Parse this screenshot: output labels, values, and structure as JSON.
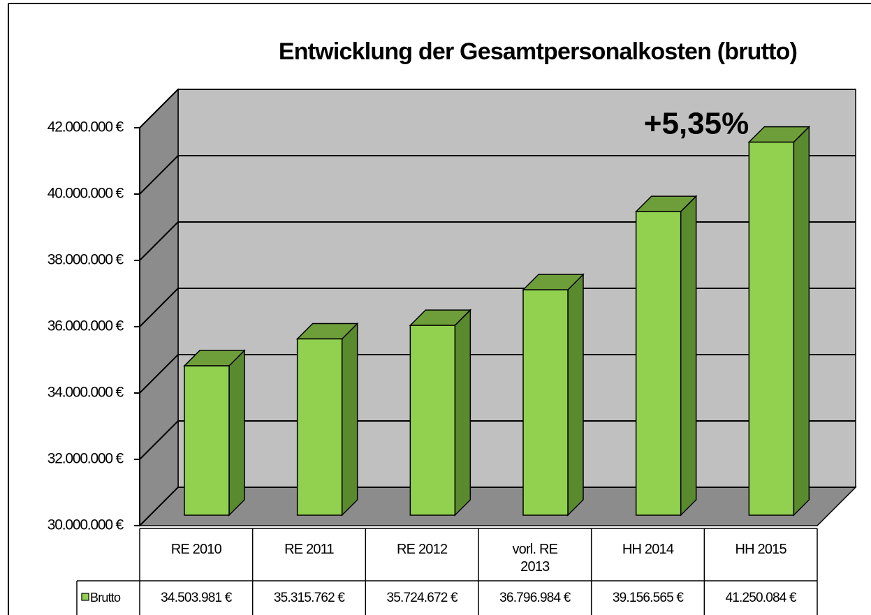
{
  "chart_data": {
    "type": "bar3d",
    "title": "Entwicklung der Gesamtpersonalkosten (brutto)",
    "annotation": "+5,35%",
    "categories": [
      "RE 2010",
      "RE 2011",
      "RE 2012",
      "vorl. RE 2013",
      "HH 2014",
      "HH 2015"
    ],
    "series": [
      {
        "name": "Brutto",
        "color": "#92d050",
        "values": [
          34503981,
          35315762,
          35724672,
          36796984,
          39156565,
          41250084
        ],
        "value_labels": [
          "34.503.981 €",
          "35.315.762 €",
          "35.724.672 €",
          "36.796.984 €",
          "39.156.565 €",
          "41.250.084 €"
        ]
      }
    ],
    "ylim": [
      30000000,
      42000000
    ],
    "yticks": [
      {
        "value": 30000000,
        "label": "30.000.000 €"
      },
      {
        "value": 32000000,
        "label": "32.000.000 €"
      },
      {
        "value": 34000000,
        "label": "34.000.000 €"
      },
      {
        "value": 36000000,
        "label": "36.000.000 €"
      },
      {
        "value": 38000000,
        "label": "38.000.000 €"
      },
      {
        "value": 40000000,
        "label": "40.000.000 €"
      },
      {
        "value": 42000000,
        "label": "42.000.000 €"
      }
    ],
    "grid": true
  }
}
